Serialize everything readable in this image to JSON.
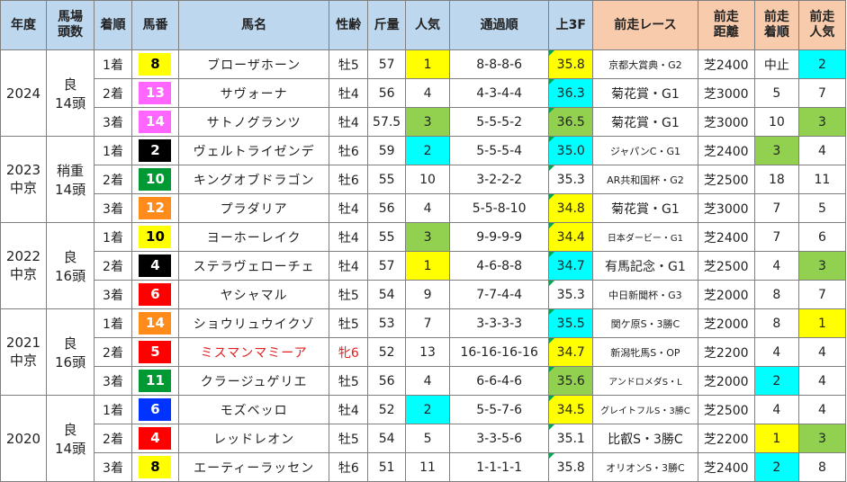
{
  "headers": [
    "年度",
    "馬場\n頭数",
    "着順",
    "馬番",
    "馬名",
    "性齢",
    "斤量",
    "人気",
    "通過順",
    "上3F",
    "前走レース",
    "前走\n距離",
    "前走\n着順",
    "前走\n人気"
  ],
  "colors": {
    "header_blue": "#bdd7ee",
    "header_orange": "#f8cbad",
    "yellow": "#ffff00",
    "cyan": "#00ffff",
    "green": "#92d050",
    "bracket": {
      "1": "#ffffff",
      "2": "#000000",
      "3": "#ff0000",
      "4": "#0033ff",
      "5": "#ffff00",
      "6": "#009933",
      "7": "#ff8c1a",
      "8": "#ff66ff"
    }
  },
  "groups": [
    {
      "year": "2024",
      "track": "良",
      "runners": "14頭",
      "rows": [
        {
          "rank": "1着",
          "num": "8",
          "bracket": 5,
          "name": "ブローザホーン",
          "sexage": "牡5",
          "weight": "57",
          "pop": "1",
          "pop_color": "yellow",
          "passing": "8-8-8-6",
          "f3": "35.8",
          "f3_color": "yellow",
          "prev_race": "京都大賞典・G2",
          "prev_race_size": "small",
          "prev_dist": "芝2400",
          "prev_rank": "中止",
          "prev_rank_color": "",
          "prev_pop": "2",
          "prev_pop_color": "cyan"
        },
        {
          "rank": "2着",
          "num": "13",
          "bracket": 8,
          "name": "サヴォーナ",
          "sexage": "牡4",
          "weight": "56",
          "pop": "4",
          "pop_color": "",
          "passing": "4-3-4-4",
          "f3": "36.3",
          "f3_color": "cyan",
          "prev_race": "菊花賞・G1",
          "prev_race_size": "",
          "prev_dist": "芝3000",
          "prev_rank": "5",
          "prev_rank_color": "",
          "prev_pop": "7",
          "prev_pop_color": ""
        },
        {
          "rank": "3着",
          "num": "14",
          "bracket": 8,
          "name": "サトノグランツ",
          "sexage": "牡4",
          "weight": "57.5",
          "pop": "3",
          "pop_color": "green",
          "passing": "5-5-5-2",
          "f3": "36.5",
          "f3_color": "green",
          "prev_race": "菊花賞・G1",
          "prev_race_size": "",
          "prev_dist": "芝3000",
          "prev_rank": "10",
          "prev_rank_color": "",
          "prev_pop": "3",
          "prev_pop_color": "green"
        }
      ]
    },
    {
      "year": "2023\n中京",
      "track": "稍重",
      "runners": "14頭",
      "rows": [
        {
          "rank": "1着",
          "num": "2",
          "bracket": 2,
          "name": "ヴェルトライゼンデ",
          "sexage": "牡6",
          "weight": "59",
          "pop": "2",
          "pop_color": "cyan",
          "passing": "5-5-5-4",
          "f3": "35.0",
          "f3_color": "cyan",
          "prev_race": "ジャパンC・G1",
          "prev_race_size": "small",
          "prev_dist": "芝2400",
          "prev_rank": "3",
          "prev_rank_color": "green",
          "prev_pop": "4",
          "prev_pop_color": ""
        },
        {
          "rank": "2着",
          "num": "10",
          "bracket": 6,
          "name": "キングオブドラゴン",
          "sexage": "牡6",
          "weight": "55",
          "pop": "10",
          "pop_color": "",
          "passing": "3-2-2-2",
          "f3": "35.3",
          "f3_color": "",
          "prev_race": "AR共和国杯・G2",
          "prev_race_size": "small",
          "prev_dist": "芝2500",
          "prev_rank": "18",
          "prev_rank_color": "",
          "prev_pop": "11",
          "prev_pop_color": ""
        },
        {
          "rank": "3着",
          "num": "12",
          "bracket": 7,
          "name": "プラダリア",
          "sexage": "牡4",
          "weight": "56",
          "pop": "4",
          "pop_color": "",
          "passing": "5-5-8-10",
          "f3": "34.8",
          "f3_color": "yellow",
          "prev_race": "菊花賞・G1",
          "prev_race_size": "",
          "prev_dist": "芝3000",
          "prev_rank": "7",
          "prev_rank_color": "",
          "prev_pop": "5",
          "prev_pop_color": ""
        }
      ]
    },
    {
      "year": "2022\n中京",
      "track": "良",
      "runners": "16頭",
      "rows": [
        {
          "rank": "1着",
          "num": "10",
          "bracket": 5,
          "name": "ヨーホーレイク",
          "sexage": "牡4",
          "weight": "55",
          "pop": "3",
          "pop_color": "green",
          "passing": "9-9-9-9",
          "f3": "34.4",
          "f3_color": "yellow",
          "prev_race": "日本ダービー・G1",
          "prev_race_size": "tiny",
          "prev_dist": "芝2400",
          "prev_rank": "7",
          "prev_rank_color": "",
          "prev_pop": "6",
          "prev_pop_color": ""
        },
        {
          "rank": "2着",
          "num": "4",
          "bracket": 2,
          "name": "ステラヴェローチェ",
          "sexage": "牡4",
          "weight": "57",
          "pop": "1",
          "pop_color": "yellow",
          "passing": "4-6-8-8",
          "f3": "34.7",
          "f3_color": "cyan",
          "prev_race": "有馬記念・G1",
          "prev_race_size": "",
          "prev_dist": "芝2500",
          "prev_rank": "4",
          "prev_rank_color": "",
          "prev_pop": "3",
          "prev_pop_color": "green"
        },
        {
          "rank": "3着",
          "num": "6",
          "bracket": 3,
          "name": "ヤシャマル",
          "sexage": "牡5",
          "weight": "54",
          "pop": "9",
          "pop_color": "",
          "passing": "7-7-4-4",
          "f3": "35.3",
          "f3_color": "",
          "prev_race": "中日新聞杯・G3",
          "prev_race_size": "small",
          "prev_dist": "芝2000",
          "prev_rank": "8",
          "prev_rank_color": "",
          "prev_pop": "7",
          "prev_pop_color": ""
        }
      ]
    },
    {
      "year": "2021\n中京",
      "track": "良",
      "runners": "16頭",
      "rows": [
        {
          "rank": "1着",
          "num": "14",
          "bracket": 7,
          "name": "ショウリュウイクゾ",
          "sexage": "牡5",
          "weight": "53",
          "pop": "7",
          "pop_color": "",
          "passing": "3-3-3-3",
          "f3": "35.5",
          "f3_color": "cyan",
          "prev_race": "関ケ原S・3勝C",
          "prev_race_size": "small",
          "prev_dist": "芝2000",
          "prev_rank": "8",
          "prev_rank_color": "",
          "prev_pop": "1",
          "prev_pop_color": "yellow"
        },
        {
          "rank": "2着",
          "num": "5",
          "bracket": 3,
          "name": "ミスマンマミーア",
          "name_red": true,
          "sexage": "牝6",
          "weight": "52",
          "pop": "13",
          "pop_color": "",
          "passing": "16-16-16-16",
          "f3": "34.7",
          "f3_color": "yellow",
          "prev_race": "新潟牝馬S・OP",
          "prev_race_size": "small",
          "prev_dist": "芝2200",
          "prev_rank": "4",
          "prev_rank_color": "",
          "prev_pop": "4",
          "prev_pop_color": ""
        },
        {
          "rank": "3着",
          "num": "11",
          "bracket": 6,
          "name": "クラージュゲリエ",
          "sexage": "牡5",
          "weight": "56",
          "pop": "4",
          "pop_color": "",
          "passing": "6-6-4-6",
          "f3": "35.6",
          "f3_color": "green",
          "prev_race": "アンドロメダS・L",
          "prev_race_size": "tiny",
          "prev_dist": "芝2000",
          "prev_rank": "2",
          "prev_rank_color": "cyan",
          "prev_pop": "4",
          "prev_pop_color": ""
        }
      ]
    },
    {
      "year": "2020",
      "track": "良",
      "runners": "14頭",
      "rows": [
        {
          "rank": "1着",
          "num": "6",
          "bracket": 4,
          "name": "モズベッロ",
          "sexage": "牡4",
          "weight": "52",
          "pop": "2",
          "pop_color": "cyan",
          "passing": "5-5-7-6",
          "f3": "34.5",
          "f3_color": "yellow",
          "prev_race": "グレイトフルS・3勝C",
          "prev_race_size": "tiny",
          "prev_dist": "芝2500",
          "prev_rank": "4",
          "prev_rank_color": "",
          "prev_pop": "4",
          "prev_pop_color": ""
        },
        {
          "rank": "2着",
          "num": "4",
          "bracket": 3,
          "name": "レッドレオン",
          "sexage": "牡5",
          "weight": "54",
          "pop": "5",
          "pop_color": "",
          "passing": "3-3-5-6",
          "f3": "35.1",
          "f3_color": "",
          "prev_race": "比叡S・3勝C",
          "prev_race_size": "",
          "prev_dist": "芝2200",
          "prev_rank": "1",
          "prev_rank_color": "yellow",
          "prev_pop": "3",
          "prev_pop_color": "green"
        },
        {
          "rank": "3着",
          "num": "8",
          "bracket": 5,
          "name": "エーティーラッセン",
          "sexage": "牡6",
          "weight": "51",
          "pop": "11",
          "pop_color": "",
          "passing": "1-1-1-1",
          "f3": "35.8",
          "f3_color": "",
          "prev_race": "オリオンS・3勝C",
          "prev_race_size": "small",
          "prev_dist": "芝2400",
          "prev_rank": "2",
          "prev_rank_color": "cyan",
          "prev_pop": "8",
          "prev_pop_color": ""
        }
      ]
    }
  ]
}
